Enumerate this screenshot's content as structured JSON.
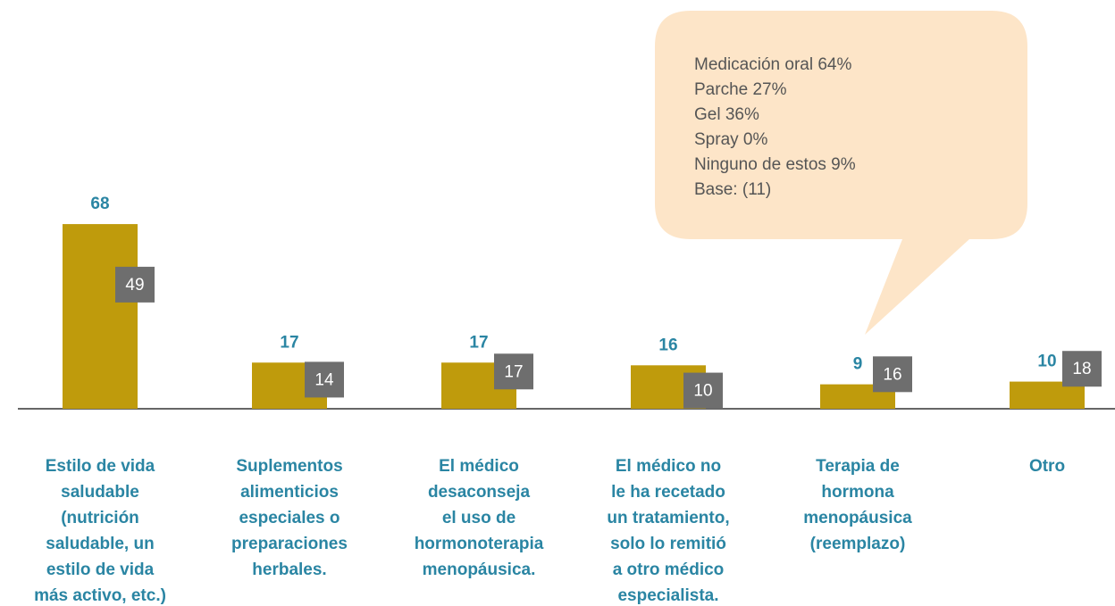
{
  "chart_data": {
    "type": "bar",
    "categories": [
      "Estilo de vida\nsaludable\n(nutrición\nsaludable, un\nestilo de vida\nmás activo, etc.)",
      "Suplementos\nalimenticios\nespeciales o\npreparaciones\nherbales.",
      "El médico\ndesaconseja\nel uso de\nhormonoterapia\nmenopáusica.",
      "El médico no\nle ha recetado\nun tratamiento,\nsolo lo remitió\na otro médico\nespecialista.",
      "Terapia de\nhormona\nmenopáusica\n(reemplazo)",
      "Otro"
    ],
    "series": [
      {
        "color": "#bf9b0c",
        "values": [
          68,
          17,
          17,
          16,
          9,
          10
        ]
      },
      {
        "color": "#6e6e6e",
        "values": [
          49,
          14,
          17,
          10,
          16,
          18
        ]
      }
    ],
    "ylim": [
      0,
      70
    ],
    "annotation": {
      "lines": [
        "Medicación oral 64%",
        "Parche 27%",
        "Gel 36%",
        "Spray 0%",
        "Ninguno de estos 9%",
        "Base: (11)"
      ]
    }
  }
}
